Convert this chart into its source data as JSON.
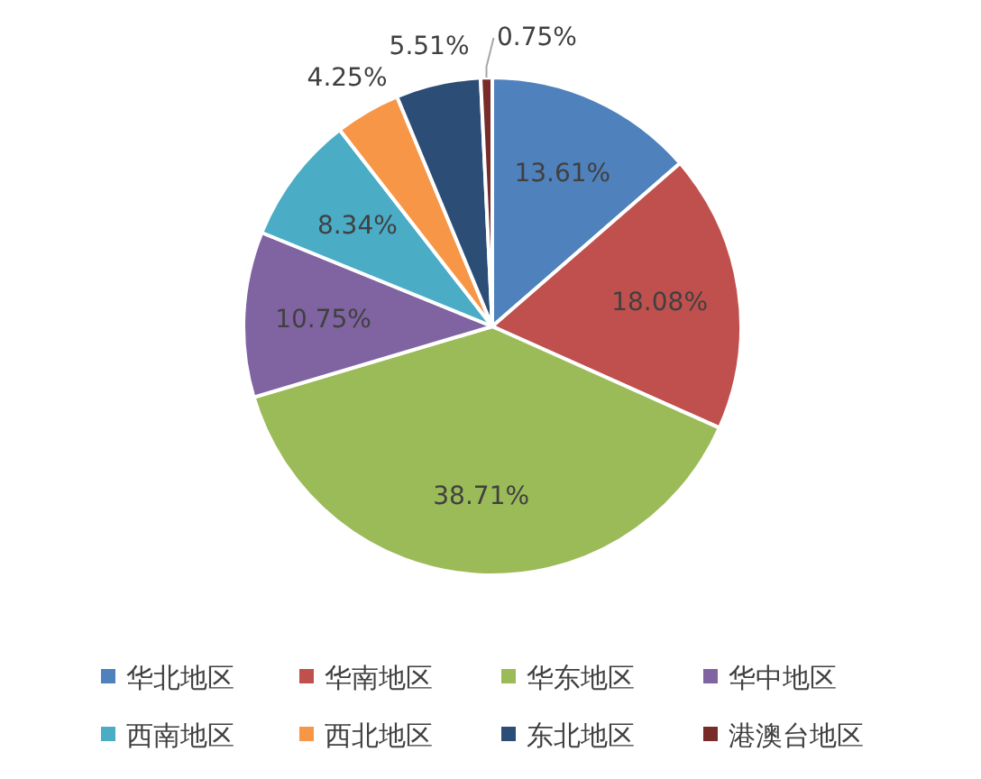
{
  "chart_data": {
    "type": "pie",
    "categories": [
      "华北地区",
      "华南地区",
      "华东地区",
      "华中地区",
      "西南地区",
      "西北地区",
      "东北地区",
      "港澳台地区"
    ],
    "values": [
      13.61,
      18.08,
      38.71,
      10.75,
      8.34,
      4.25,
      5.51,
      0.75
    ],
    "colors": [
      "#4f81bd",
      "#c0504d",
      "#9bbb59",
      "#8064a2",
      "#4bacc6",
      "#f79646",
      "#2c4d75",
      "#772c2a"
    ],
    "value_labels": [
      "13.61%",
      "18.08%",
      "38.71%",
      "10.75%",
      "8.34%",
      "4.25%",
      "5.51%",
      "0.75%"
    ],
    "legend": "bottom"
  }
}
